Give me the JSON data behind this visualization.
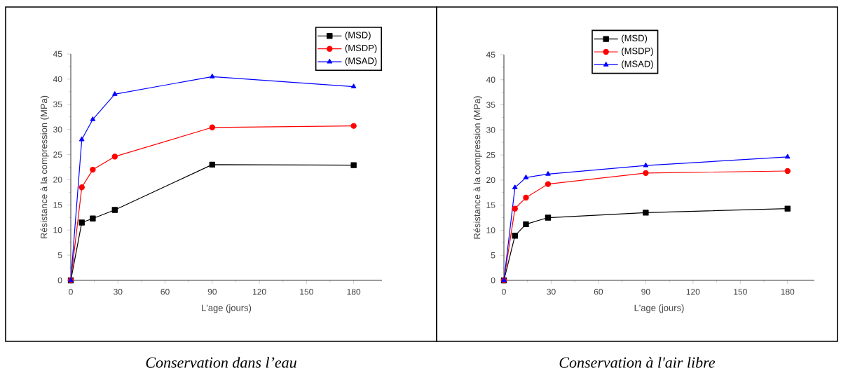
{
  "chart_data": [
    {
      "type": "line",
      "title": "Conservation dans l’eau",
      "xlabel": "L'age (jours)",
      "ylabel": "Résistance à la compression (MPa)",
      "x": [
        0,
        7,
        14,
        28,
        90,
        180
      ],
      "xlim": [
        0,
        198
      ],
      "ylim": [
        0,
        45
      ],
      "xticks": [
        0,
        30,
        60,
        90,
        120,
        150,
        180
      ],
      "yticks": [
        0,
        5,
        10,
        15,
        20,
        25,
        30,
        35,
        40,
        45
      ],
      "legend": "top right",
      "series": [
        {
          "name": "(MSD)",
          "color": "#000000",
          "marker": "square",
          "values": [
            0,
            11.5,
            12.3,
            14,
            23,
            22.9
          ]
        },
        {
          "name": "(MSDP)",
          "color": "#ff0000",
          "marker": "circle",
          "values": [
            0,
            18.5,
            22,
            24.6,
            30.4,
            30.7
          ]
        },
        {
          "name": "(MSAD)",
          "color": "#0000ff",
          "marker": "triangle",
          "values": [
            0,
            28,
            32,
            37,
            40.5,
            38.5
          ]
        }
      ]
    },
    {
      "type": "line",
      "title": "Conservation à l'air libre",
      "xlabel": "L'age (jours)",
      "ylabel": "Résistance à la compression (MPa)",
      "x": [
        0,
        7,
        14,
        28,
        90,
        180
      ],
      "xlim": [
        0,
        197
      ],
      "ylim": [
        0,
        45
      ],
      "xticks": [
        0,
        30,
        60,
        90,
        120,
        150,
        180
      ],
      "yticks": [
        0,
        5,
        10,
        15,
        20,
        25,
        30,
        35,
        40,
        45
      ],
      "legend": "top",
      "series": [
        {
          "name": "(MSD)",
          "color": "#000000",
          "marker": "square",
          "values": [
            0,
            8.9,
            11.2,
            12.5,
            13.5,
            14.3
          ]
        },
        {
          "name": "(MSDP)",
          "color": "#ff0000",
          "marker": "circle",
          "values": [
            0,
            14.3,
            16.5,
            19.2,
            21.4,
            21.8
          ]
        },
        {
          "name": "(MSAD)",
          "color": "#0000ff",
          "marker": "triangle",
          "values": [
            0,
            18.5,
            20.5,
            21.2,
            22.9,
            24.6
          ]
        }
      ]
    }
  ]
}
